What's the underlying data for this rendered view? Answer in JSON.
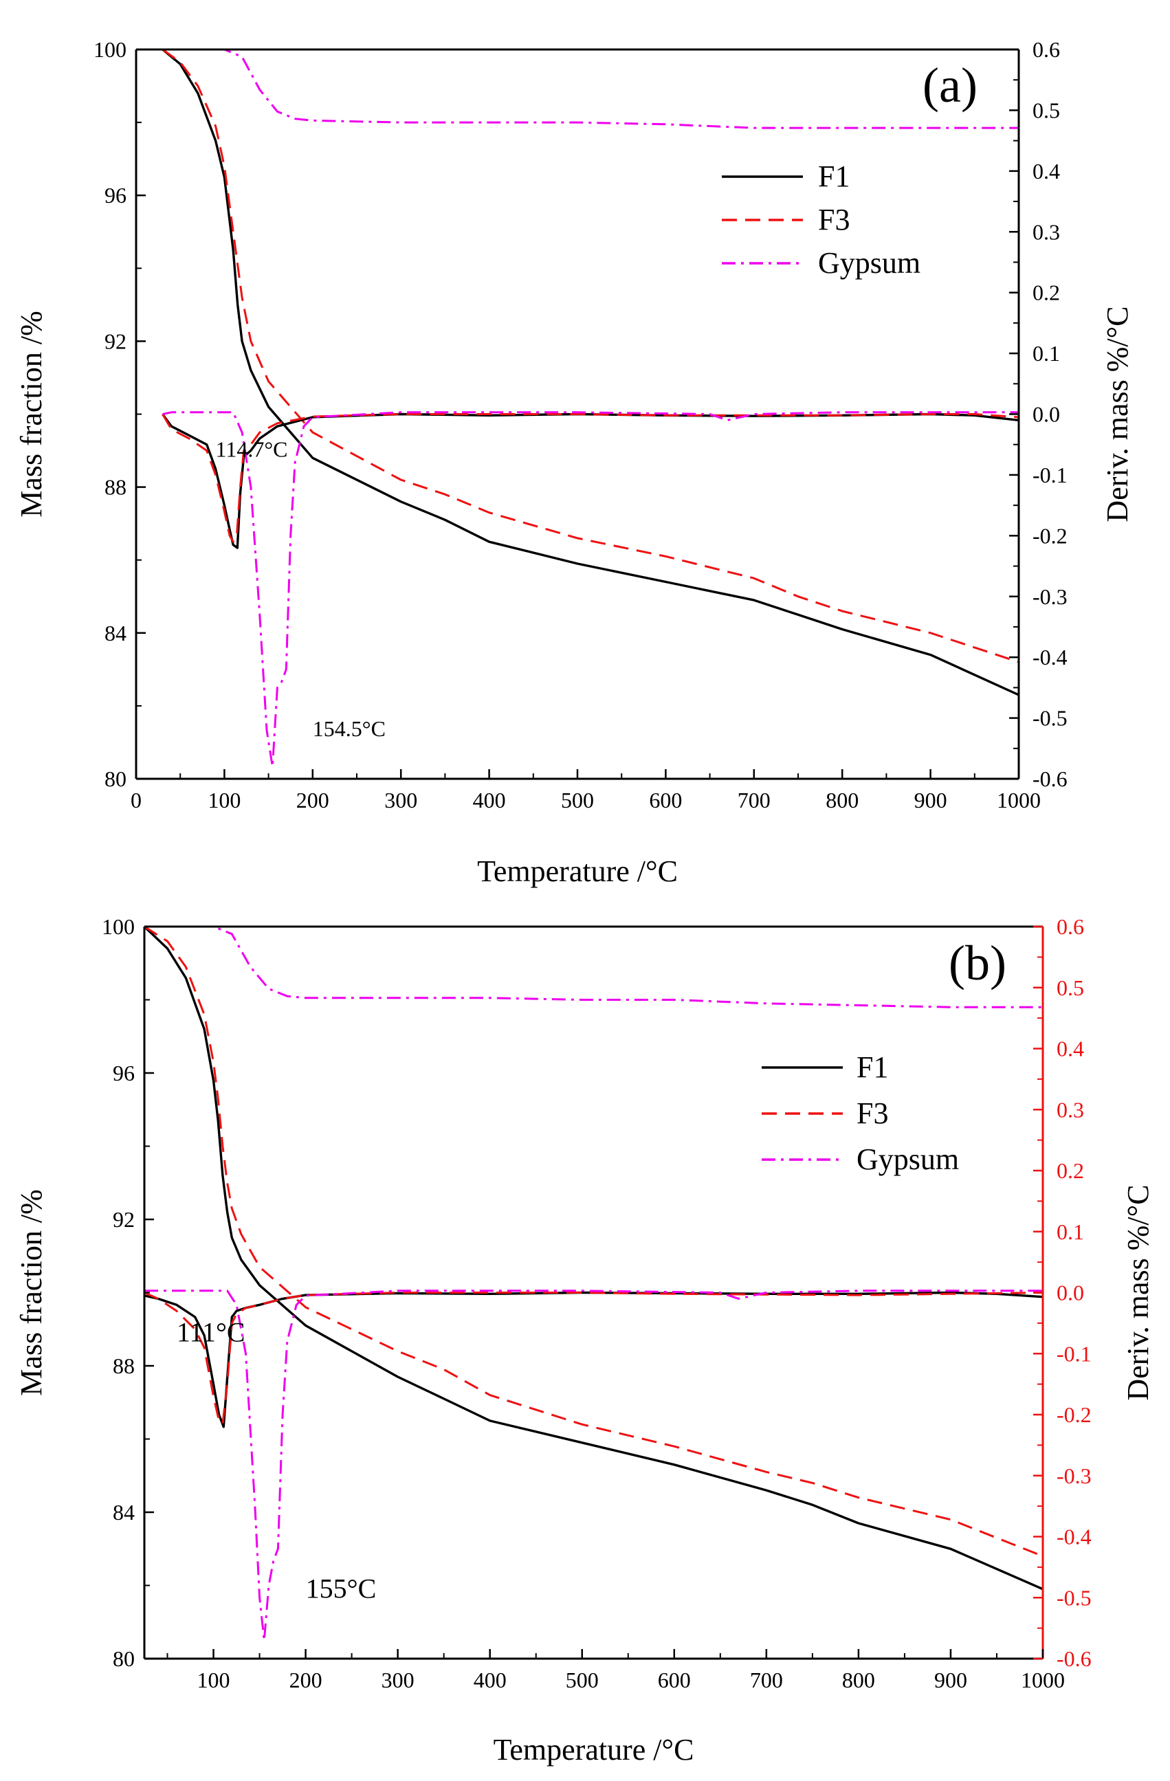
{
  "colors": {
    "f1": "#000000",
    "f3": "#ee1111",
    "gypsum": "#ee00ee",
    "axis": "#000000",
    "deriv_axis_b": "#ee1111"
  },
  "chart_data": [
    {
      "panel": "a",
      "type": "line",
      "panel_label": "(a)",
      "xlabel": "Temperature /°C",
      "ylabel": "Mass fraction /%",
      "y2label": "Deriv. mass  %/°C",
      "xlim": [
        0,
        1000
      ],
      "ylim": [
        80,
        100
      ],
      "y2lim": [
        -0.6,
        0.6
      ],
      "xticks": [
        "0",
        "100",
        "200",
        "300",
        "400",
        "500",
        "600",
        "700",
        "800",
        "900",
        "1000"
      ],
      "yticks": [
        "80",
        "84",
        "88",
        "92",
        "96",
        "100"
      ],
      "y2ticks": [
        "-0.6",
        "-0.5",
        "-0.4",
        "-0.3",
        "-0.2",
        "-0.1",
        "0.0",
        "0.1",
        "0.2",
        "0.3",
        "0.4",
        "0.5",
        "0.6"
      ],
      "legend": [
        "F1",
        "F3",
        "Gypsum"
      ],
      "legend_position": "top-right",
      "annotations": [
        {
          "text": "114.7°C",
          "x": 90,
          "y2": -0.07
        },
        {
          "text": "154.5°C",
          "x": 200,
          "y2": -0.53
        }
      ],
      "series": [
        {
          "name": "F1",
          "axis": "left",
          "style": "solid",
          "color_key": "f1",
          "x": [
            30,
            50,
            70,
            90,
            100,
            110,
            115,
            120,
            130,
            150,
            200,
            300,
            350,
            400,
            500,
            600,
            700,
            750,
            800,
            900,
            1000
          ],
          "values": [
            100,
            99.6,
            98.8,
            97.5,
            96.5,
            94.5,
            93.0,
            92.0,
            91.2,
            90.2,
            88.8,
            87.6,
            87.1,
            86.5,
            85.9,
            85.4,
            84.9,
            84.5,
            84.1,
            83.4,
            82.3
          ]
        },
        {
          "name": "F3",
          "axis": "left",
          "style": "dashed",
          "color_key": "f3",
          "x": [
            30,
            50,
            70,
            90,
            100,
            110,
            120,
            130,
            150,
            200,
            300,
            350,
            400,
            500,
            600,
            700,
            750,
            800,
            900,
            1000
          ],
          "values": [
            100,
            99.65,
            99.0,
            97.9,
            96.8,
            95.0,
            93.2,
            92.0,
            90.9,
            89.5,
            88.2,
            87.8,
            87.3,
            86.6,
            86.1,
            85.5,
            85.0,
            84.6,
            84.0,
            83.2
          ]
        },
        {
          "name": "Gypsum",
          "axis": "left",
          "style": "dashdot",
          "color_key": "gypsum",
          "x": [
            30,
            100,
            120,
            140,
            160,
            180,
            200,
            300,
            400,
            500,
            600,
            700,
            800,
            900,
            1000
          ],
          "values": [
            100,
            100,
            99.8,
            98.9,
            98.3,
            98.1,
            98.05,
            98.0,
            98.0,
            98.0,
            97.95,
            97.85,
            97.85,
            97.85,
            97.85
          ]
        },
        {
          "name": "F1 deriv",
          "axis": "right",
          "style": "solid",
          "color_key": "f1",
          "x": [
            30,
            40,
            60,
            80,
            90,
            100,
            106,
            110,
            114.7,
            118,
            122,
            130,
            140,
            160,
            200,
            300,
            400,
            500,
            600,
            700,
            800,
            900,
            950,
            1000
          ],
          "values": [
            0,
            -0.02,
            -0.035,
            -0.05,
            -0.09,
            -0.15,
            -0.19,
            -0.215,
            -0.22,
            -0.13,
            -0.07,
            -0.06,
            -0.04,
            -0.02,
            -0.005,
            0,
            -0.002,
            0,
            -0.002,
            -0.003,
            -0.002,
            0,
            -0.002,
            -0.01
          ]
        },
        {
          "name": "F3 deriv",
          "axis": "right",
          "style": "dashed",
          "color_key": "f3",
          "x": [
            30,
            40,
            60,
            80,
            90,
            100,
            106,
            110,
            114,
            118,
            122,
            130,
            140,
            160,
            200,
            300,
            400,
            500,
            600,
            700,
            800,
            900,
            950,
            1000
          ],
          "values": [
            0,
            -0.025,
            -0.04,
            -0.06,
            -0.1,
            -0.16,
            -0.2,
            -0.21,
            -0.2,
            -0.12,
            -0.06,
            -0.05,
            -0.03,
            -0.015,
            -0.004,
            0,
            0,
            0,
            -0.002,
            -0.002,
            -0.002,
            0,
            0,
            -0.005
          ]
        },
        {
          "name": "Gypsum deriv",
          "axis": "right",
          "style": "dashdot",
          "color_key": "gypsum",
          "x": [
            30,
            40,
            110,
            120,
            130,
            140,
            148,
            154.5,
            160,
            165,
            170,
            175,
            180,
            190,
            200,
            300,
            500,
            650,
            670,
            700,
            800,
            900,
            1000
          ],
          "values": [
            0,
            0.003,
            0.003,
            -0.03,
            -0.12,
            -0.33,
            -0.52,
            -0.58,
            -0.45,
            -0.44,
            -0.42,
            -0.2,
            -0.08,
            -0.02,
            -0.005,
            0.003,
            0.003,
            0.0,
            -0.01,
            0.0,
            0.003,
            0.003,
            0.003
          ]
        }
      ]
    },
    {
      "panel": "b",
      "type": "line",
      "panel_label": "(b)",
      "xlabel": "Temperature /°C",
      "ylabel": "Mass fraction /%",
      "y2label": "Deriv. mass  %/°C",
      "xlim": [
        25,
        1000
      ],
      "ylim": [
        80,
        100
      ],
      "y2lim": [
        -0.6,
        0.6
      ],
      "xticks": [
        "100",
        "200",
        "300",
        "400",
        "500",
        "600",
        "700",
        "800",
        "900",
        "1000"
      ],
      "yticks": [
        "80",
        "84",
        "88",
        "92",
        "96",
        "100"
      ],
      "y2ticks": [
        "-0.6",
        "-0.5",
        "-0.4",
        "-0.3",
        "-0.2",
        "-0.1",
        "0.0",
        "0.1",
        "0.2",
        "0.3",
        "0.4",
        "0.5",
        "0.6"
      ],
      "legend": [
        "F1",
        "F3",
        "Gypsum"
      ],
      "legend_position": "top-right",
      "annotations": [
        {
          "text": "111°C",
          "x": 60,
          "y2": -0.08
        },
        {
          "text": "155°C",
          "x": 200,
          "y2": -0.5
        }
      ],
      "series": [
        {
          "name": "F1",
          "axis": "left",
          "style": "solid",
          "color_key": "f1",
          "x": [
            25,
            50,
            70,
            90,
            100,
            105,
            110,
            115,
            120,
            130,
            150,
            200,
            300,
            350,
            400,
            500,
            600,
            700,
            750,
            800,
            900,
            1000
          ],
          "values": [
            100,
            99.4,
            98.6,
            97.2,
            95.8,
            94.7,
            93.2,
            92.2,
            91.5,
            90.9,
            90.2,
            89.1,
            87.7,
            87.1,
            86.5,
            85.9,
            85.3,
            84.6,
            84.2,
            83.7,
            83.0,
            81.9
          ]
        },
        {
          "name": "F3",
          "axis": "left",
          "style": "dashed",
          "color_key": "f3",
          "x": [
            25,
            50,
            70,
            90,
            100,
            105,
            110,
            115,
            120,
            130,
            150,
            200,
            300,
            350,
            400,
            500,
            600,
            700,
            750,
            800,
            900,
            1000
          ],
          "values": [
            100,
            99.6,
            98.9,
            97.6,
            96.3,
            95.3,
            94.0,
            93.0,
            92.3,
            91.6,
            90.7,
            89.6,
            88.4,
            87.9,
            87.2,
            86.4,
            85.8,
            85.1,
            84.8,
            84.4,
            83.8,
            82.8
          ]
        },
        {
          "name": "Gypsum",
          "axis": "left",
          "style": "dashdot",
          "color_key": "gypsum",
          "x": [
            25,
            100,
            120,
            140,
            160,
            180,
            200,
            300,
            400,
            500,
            600,
            700,
            800,
            900,
            1000
          ],
          "values": [
            100,
            100,
            99.8,
            98.9,
            98.3,
            98.1,
            98.05,
            98.05,
            98.05,
            98.0,
            98.0,
            97.9,
            97.85,
            97.8,
            97.8
          ]
        },
        {
          "name": "F1 deriv",
          "axis": "right",
          "style": "solid",
          "color_key": "f1",
          "x": [
            25,
            40,
            60,
            80,
            90,
            100,
            106,
            111,
            115,
            120,
            125,
            135,
            150,
            175,
            200,
            300,
            400,
            500,
            600,
            700,
            800,
            900,
            950,
            1000
          ],
          "values": [
            -0.005,
            -0.01,
            -0.02,
            -0.04,
            -0.07,
            -0.15,
            -0.2,
            -0.22,
            -0.14,
            -0.04,
            -0.03,
            -0.025,
            -0.02,
            -0.01,
            -0.004,
            -0.001,
            -0.002,
            0,
            -0.001,
            -0.002,
            -0.002,
            0,
            -0.002,
            -0.007
          ]
        },
        {
          "name": "F3 deriv",
          "axis": "right",
          "style": "dashed",
          "color_key": "f3",
          "x": [
            25,
            40,
            60,
            80,
            90,
            100,
            106,
            110,
            115,
            120,
            125,
            135,
            150,
            175,
            200,
            300,
            400,
            500,
            600,
            700,
            800,
            900,
            950,
            1000
          ],
          "values": [
            0,
            -0.01,
            -0.03,
            -0.06,
            -0.09,
            -0.17,
            -0.21,
            -0.215,
            -0.15,
            -0.05,
            -0.035,
            -0.025,
            -0.02,
            -0.01,
            -0.004,
            0,
            0,
            0,
            -0.002,
            -0.003,
            -0.004,
            -0.002,
            -0.001,
            0
          ]
        },
        {
          "name": "Gypsum deriv",
          "axis": "right",
          "style": "dashdot",
          "color_key": "gypsum",
          "x": [
            25,
            40,
            115,
            125,
            135,
            145,
            150,
            155,
            160,
            165,
            170,
            175,
            180,
            190,
            200,
            300,
            500,
            650,
            670,
            700,
            800,
            900,
            1000
          ],
          "values": [
            0.003,
            0.003,
            0.003,
            -0.02,
            -0.1,
            -0.35,
            -0.5,
            -0.57,
            -0.48,
            -0.44,
            -0.42,
            -0.2,
            -0.08,
            -0.02,
            -0.005,
            0.003,
            0.003,
            0.0,
            -0.01,
            0.0,
            0.003,
            0.003,
            0.003
          ]
        }
      ]
    }
  ]
}
